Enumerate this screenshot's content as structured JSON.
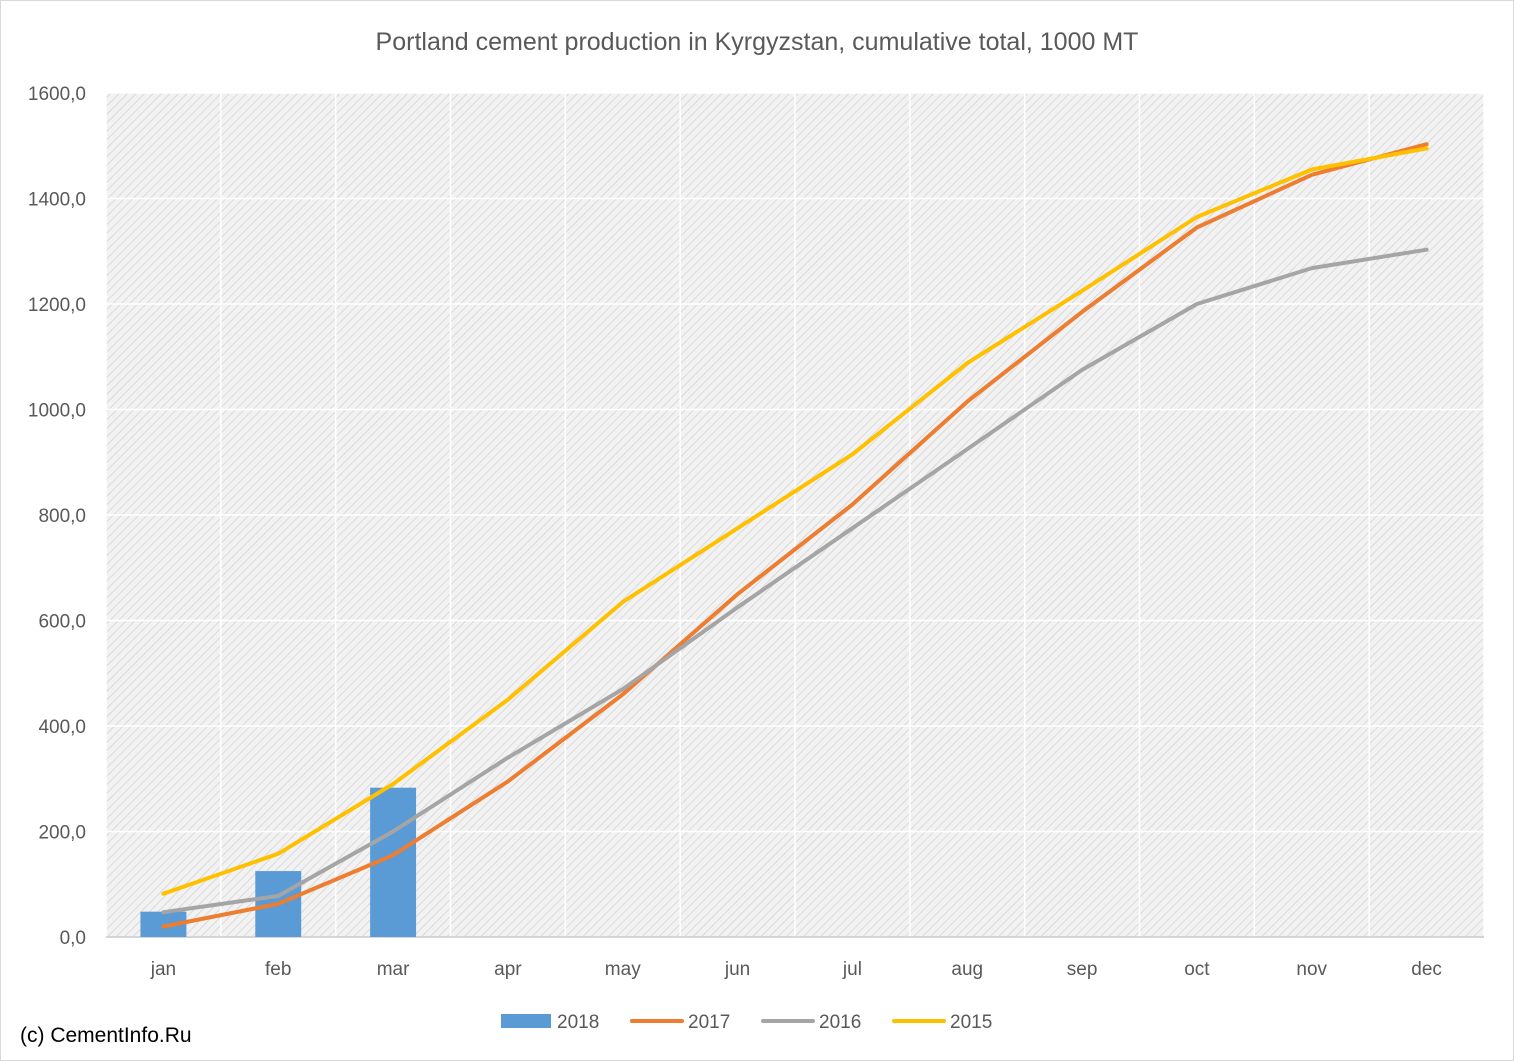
{
  "chart_data": {
    "type": "bar+line",
    "title": "Portland cement production in Kyrgyzstan, cumulative total, 1000 MT",
    "categories": [
      "jan",
      "feb",
      "mar",
      "apr",
      "may",
      "jun",
      "jul",
      "aug",
      "sep",
      "oct",
      "nov",
      "dec"
    ],
    "ylim": [
      0,
      1600
    ],
    "yticks": [
      0,
      200,
      400,
      600,
      800,
      1000,
      1200,
      1400,
      1600
    ],
    "ytick_labels": [
      "0,0",
      "200,0",
      "400,0",
      "600,0",
      "800,0",
      "1000,0",
      "1200,0",
      "1400,0",
      "1600,0"
    ],
    "grid": true,
    "legend_position": "bottom",
    "series": [
      {
        "name": "2018",
        "kind": "bar",
        "color": "#5b9bd5",
        "values": [
          48,
          125,
          283,
          null,
          null,
          null,
          null,
          null,
          null,
          null,
          null,
          null
        ]
      },
      {
        "name": "2017",
        "kind": "line",
        "color": "#ed7d31",
        "values": [
          20,
          63,
          155,
          295,
          460,
          650,
          820,
          1015,
          1185,
          1345,
          1445,
          1503
        ]
      },
      {
        "name": "2016",
        "kind": "line",
        "color": "#a5a5a5",
        "values": [
          47,
          78,
          200,
          340,
          470,
          625,
          775,
          925,
          1075,
          1200,
          1268,
          1303
        ]
      },
      {
        "name": "2015",
        "kind": "line",
        "color": "#ffc000",
        "values": [
          82,
          158,
          290,
          450,
          635,
          775,
          915,
          1088,
          1225,
          1365,
          1455,
          1495
        ]
      }
    ]
  },
  "credit": "(c) CementInfo.Ru"
}
